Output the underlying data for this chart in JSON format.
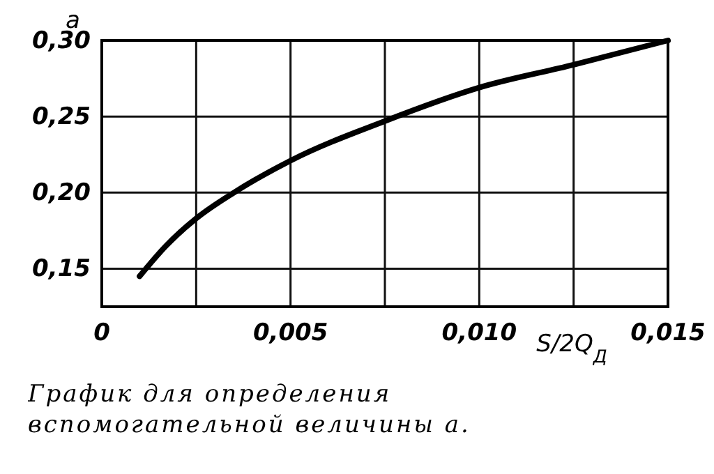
{
  "chart_data": {
    "type": "line",
    "xlabel": "S/2Q$_{Д}$",
    "ylabel": "a",
    "x": [
      0.001,
      0.0017,
      0.0025,
      0.0035,
      0.005,
      0.0075,
      0.01,
      0.0125,
      0.015
    ],
    "series": [
      {
        "color": "#000000",
        "values": [
          0.145,
          0.165,
          0.183,
          0.2,
          0.221,
          0.247,
          0.269,
          0.284,
          0.3
        ]
      }
    ],
    "xlim": [
      0,
      0.015
    ],
    "ylim": [
      0.125,
      0.3
    ],
    "xticks": [
      {
        "value": 0,
        "label": "0"
      },
      {
        "value": 0.0025,
        "label": null
      },
      {
        "value": 0.005,
        "label": "0,005"
      },
      {
        "value": 0.0075,
        "label": null
      },
      {
        "value": 0.01,
        "label": "0,010"
      },
      {
        "value": 0.0125,
        "label": null
      },
      {
        "value": 0.015,
        "label": "0,015"
      }
    ],
    "yticks": [
      {
        "value": 0.15,
        "label": "0,15"
      },
      {
        "value": 0.2,
        "label": "0,20"
      },
      {
        "value": 0.25,
        "label": "0,25"
      },
      {
        "value": 0.3,
        "label": "0,30"
      }
    ],
    "grid": true,
    "marker": "none",
    "line_style": "solid",
    "annotations": [
      "График для определения вспомогательной величины a."
    ]
  }
}
